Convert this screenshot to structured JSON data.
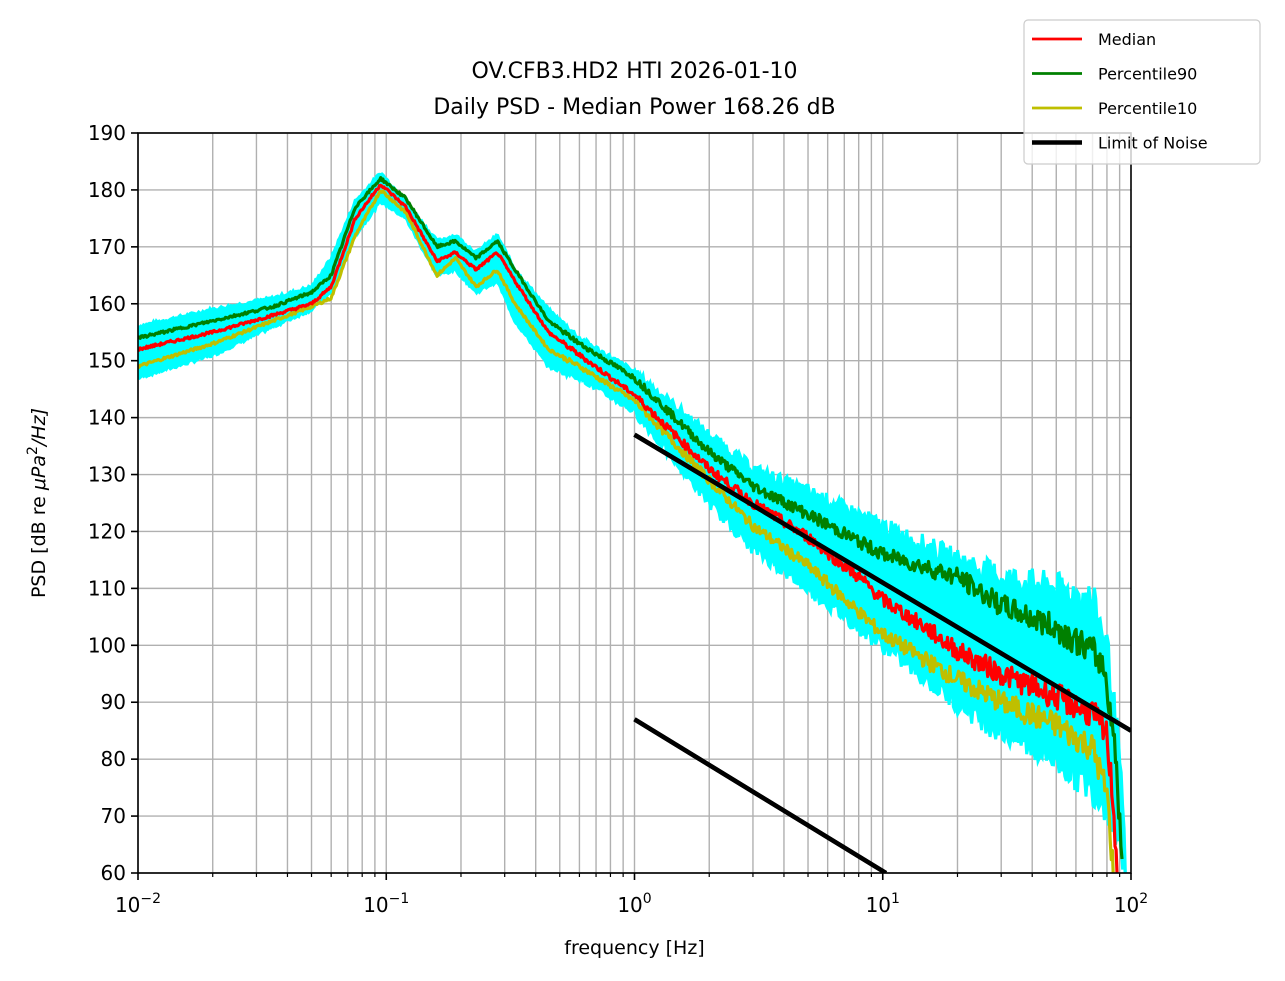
{
  "chart_data": {
    "type": "line",
    "title": "OV.CFB3.HD2 HTI 2026-01-10",
    "subtitle": "Daily PSD - Median Power 168.26 dB",
    "xlabel": "frequency [Hz]",
    "ylabel_parts": {
      "prefix": "PSD [dB re ",
      "mu": "μPa",
      "sup": "2",
      "suffix": "/Hz]"
    },
    "xscale": "log",
    "xlim": [
      0.01,
      100
    ],
    "ylim": [
      60,
      190
    ],
    "grid": true,
    "grid_minor": true,
    "legend_position": "top-right (outside plot)",
    "x_ticks": [
      {
        "value": 0.01,
        "base": "10",
        "exp": "−2"
      },
      {
        "value": 0.1,
        "base": "10",
        "exp": "−1"
      },
      {
        "value": 1,
        "base": "10",
        "exp": "0"
      },
      {
        "value": 10,
        "base": "10",
        "exp": "1"
      },
      {
        "value": 100,
        "base": "10",
        "exp": "2"
      }
    ],
    "y_ticks": [
      60,
      70,
      80,
      90,
      100,
      110,
      120,
      130,
      140,
      150,
      160,
      170,
      180,
      190
    ],
    "series": [
      {
        "name": "Individual PSDs",
        "color": "#00ffff",
        "in_legend": false,
        "band": true,
        "x": [
          0.01,
          0.02,
          0.035,
          0.05,
          0.06,
          0.075,
          0.095,
          0.12,
          0.16,
          0.19,
          0.23,
          0.28,
          0.33,
          0.45,
          0.6,
          1,
          2,
          3,
          5,
          10,
          20,
          30,
          50,
          70,
          80,
          90,
          95
        ],
        "upper": [
          156,
          159,
          161,
          163,
          168,
          178,
          183,
          178,
          171,
          172,
          169,
          172,
          166,
          159,
          154,
          148,
          137,
          131,
          127,
          121,
          115,
          112,
          110,
          108,
          100,
          80,
          60
        ],
        "lower": [
          147,
          151,
          156,
          159,
          162,
          172,
          178,
          175,
          165,
          166,
          162,
          164,
          157,
          149,
          147,
          141,
          125,
          117,
          110,
          100,
          90,
          85,
          80,
          75,
          72,
          66,
          60
        ]
      },
      {
        "name": "Median",
        "color": "#ff0000",
        "in_legend": true,
        "x": [
          0.01,
          0.02,
          0.035,
          0.05,
          0.06,
          0.075,
          0.095,
          0.12,
          0.16,
          0.19,
          0.23,
          0.28,
          0.33,
          0.45,
          0.6,
          1,
          2,
          3,
          5,
          8,
          10,
          15,
          20,
          30,
          50,
          70,
          80,
          85,
          88
        ],
        "y": [
          152,
          155,
          158,
          160,
          163,
          175,
          181,
          177,
          167.5,
          169,
          166,
          169,
          164,
          155,
          151,
          144,
          131,
          125,
          119,
          112,
          108,
          103,
          99,
          95,
          91,
          88,
          84,
          72,
          60
        ]
      },
      {
        "name": "Percentile90",
        "color": "#008000",
        "in_legend": true,
        "x": [
          0.01,
          0.02,
          0.035,
          0.05,
          0.06,
          0.075,
          0.095,
          0.12,
          0.16,
          0.19,
          0.23,
          0.28,
          0.33,
          0.45,
          0.6,
          1,
          2,
          3,
          5,
          10,
          20,
          30,
          50,
          70,
          78,
          85,
          90,
          92
        ],
        "y": [
          154,
          157,
          159.5,
          162,
          165,
          177,
          182,
          178.5,
          170,
          171,
          168,
          171,
          166,
          157,
          153,
          147,
          134,
          128,
          123,
          116,
          112,
          107,
          103,
          99,
          96,
          85,
          70,
          60
        ]
      },
      {
        "name": "Percentile10",
        "color": "#bfbf00",
        "in_legend": true,
        "x": [
          0.01,
          0.02,
          0.035,
          0.05,
          0.06,
          0.075,
          0.095,
          0.12,
          0.16,
          0.19,
          0.23,
          0.28,
          0.33,
          0.45,
          0.6,
          1,
          2,
          3,
          5,
          10,
          20,
          30,
          50,
          70,
          80,
          85
        ],
        "y": [
          149,
          153,
          157,
          159.5,
          161,
          172,
          180,
          176,
          165,
          168,
          163,
          166,
          160,
          152,
          149,
          143,
          129,
          121,
          114,
          102,
          94,
          90,
          86,
          82,
          74,
          60
        ]
      },
      {
        "name": "Limit of Noise",
        "color": "#000000",
        "in_legend": true,
        "segments": [
          {
            "x": [
              1,
              100
            ],
            "y": [
              137,
              85
            ]
          },
          {
            "x": [
              1,
              10.3
            ],
            "y": [
              87,
              60
            ]
          }
        ]
      }
    ],
    "legend": [
      {
        "label": "Median",
        "color": "#ff0000"
      },
      {
        "label": "Percentile90",
        "color": "#008000"
      },
      {
        "label": "Percentile10",
        "color": "#bfbf00"
      },
      {
        "label": "Limit of Noise",
        "color": "#000000"
      }
    ]
  }
}
